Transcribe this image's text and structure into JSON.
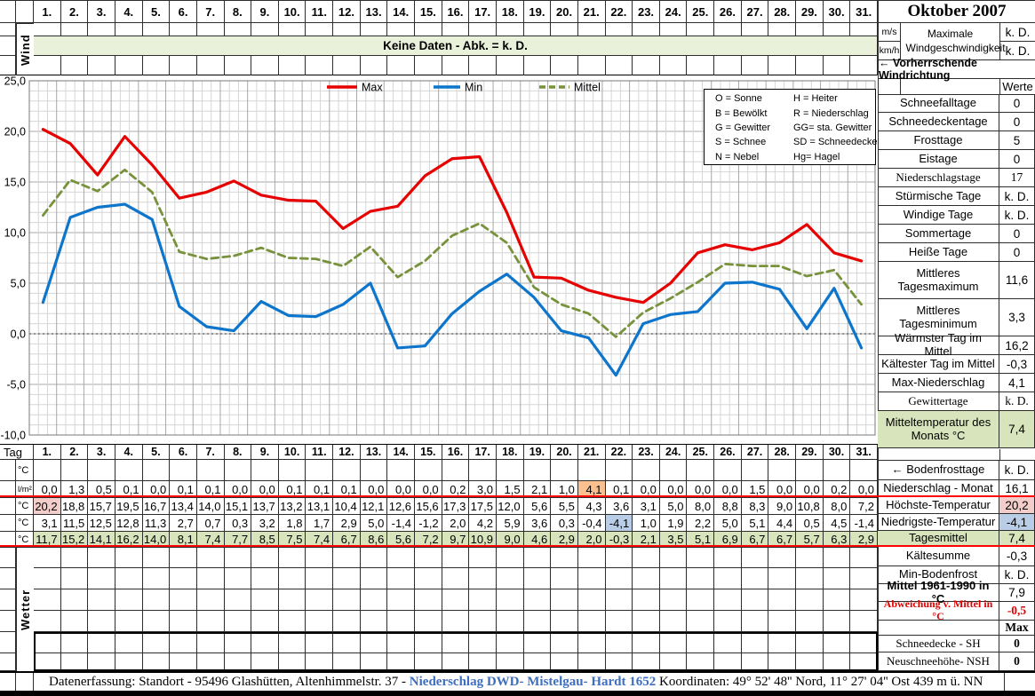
{
  "month_title": "Oktober 2007",
  "days": [
    "1.",
    "2.",
    "3.",
    "4.",
    "5.",
    "6.",
    "7.",
    "8.",
    "9.",
    "10.",
    "11.",
    "12.",
    "13.",
    "14.",
    "15.",
    "16.",
    "17.",
    "18.",
    "19.",
    "20.",
    "21.",
    "22.",
    "23.",
    "24.",
    "25.",
    "26.",
    "27.",
    "28.",
    "29.",
    "30.",
    "31."
  ],
  "wind_section": {
    "row_label": "Wind",
    "no_data_banner": "Keine Daten - Abk. = k. D."
  },
  "chart_data": {
    "type": "line",
    "title": "",
    "categories": [
      1,
      2,
      3,
      4,
      5,
      6,
      7,
      8,
      9,
      10,
      11,
      12,
      13,
      14,
      15,
      16,
      17,
      18,
      19,
      20,
      21,
      22,
      23,
      24,
      25,
      26,
      27,
      28,
      29,
      30,
      31
    ],
    "ylim": [
      -10,
      25
    ],
    "ytick_labels": [
      "25,0",
      "20,0",
      "15,0",
      "10,0",
      "5,0",
      "0,0",
      "-5,0",
      "-10,0"
    ],
    "grid": true,
    "legend_position": "top-center",
    "series": [
      {
        "name": "Max",
        "color": "#e60000",
        "dash": "solid",
        "values": [
          20.2,
          18.8,
          15.7,
          19.5,
          16.7,
          13.4,
          14.0,
          15.1,
          13.7,
          13.2,
          13.1,
          10.4,
          12.1,
          12.6,
          15.6,
          17.3,
          17.5,
          12.0,
          5.6,
          5.5,
          4.3,
          3.6,
          3.1,
          5.0,
          8.0,
          8.8,
          8.3,
          9.0,
          10.8,
          8.0,
          7.2
        ]
      },
      {
        "name": "Min",
        "color": "#0d76cc",
        "dash": "solid",
        "values": [
          3.1,
          11.5,
          12.5,
          12.8,
          11.3,
          2.7,
          0.7,
          0.3,
          3.2,
          1.8,
          1.7,
          2.9,
          5.0,
          -1.4,
          -1.2,
          2.0,
          4.2,
          5.9,
          3.6,
          0.3,
          -0.4,
          -4.1,
          1.0,
          1.9,
          2.2,
          5.0,
          5.1,
          4.4,
          0.5,
          4.5,
          -1.4
        ]
      },
      {
        "name": "Mittel",
        "color": "#78923c",
        "dash": "dashed",
        "values": [
          11.7,
          15.2,
          14.1,
          16.2,
          14.0,
          8.1,
          7.4,
          7.7,
          8.5,
          7.5,
          7.4,
          6.7,
          8.6,
          5.6,
          7.2,
          9.7,
          10.9,
          9.0,
          4.6,
          2.9,
          2.0,
          -0.3,
          2.1,
          3.5,
          5.1,
          6.9,
          6.7,
          6.7,
          5.7,
          6.3,
          2.9
        ]
      }
    ]
  },
  "abbreviations": {
    "rows": [
      [
        "O = Sonne",
        "H = Heiter"
      ],
      [
        "B = Bewölkt",
        "R = Niederschlag"
      ],
      [
        "G = Gewitter",
        "GG= sta. Gewitter"
      ],
      [
        "S = Schnee",
        "SD = Schneedecke"
      ],
      [
        "N = Nebel",
        "Hg= Hagel"
      ]
    ]
  },
  "table": {
    "tag_label": "Tag",
    "rows": [
      {
        "unit": "°C",
        "name": "bodenfrost",
        "values": null
      },
      {
        "unit": "l/m²",
        "name": "niederschlag",
        "values": [
          "0,0",
          "1,3",
          "0,5",
          "0,1",
          "0,0",
          "0,1",
          "0,1",
          "0,0",
          "0,0",
          "0,1",
          "0,1",
          "0,1",
          "0,0",
          "0,0",
          "0,0",
          "0,2",
          "3,0",
          "1,5",
          "2,1",
          "1,0",
          "4,1",
          "0,1",
          "0,0",
          "0,0",
          "0,0",
          "0,0",
          "1,5",
          "0,0",
          "0,0",
          "0,2",
          "0,0"
        ],
        "highlight": {
          "index": 20,
          "bg": "orange"
        }
      },
      {
        "unit": "°C",
        "name": "tmax",
        "from_series": "Max",
        "highlight": {
          "index": 0,
          "bg": "pink"
        }
      },
      {
        "unit": "°C",
        "name": "tmin",
        "from_series": "Min",
        "highlight": {
          "index": 21,
          "bg": "blue"
        }
      },
      {
        "unit": "°C",
        "name": "tmittel",
        "from_series": "Mittel",
        "row_bg": "green"
      }
    ]
  },
  "wetter_section": {
    "row_label": "Wetter"
  },
  "sidebar": {
    "wind": {
      "units": [
        "m/s",
        "km/h"
      ],
      "label": "Maximale Windgeschwindigkeit",
      "values": [
        "k. D.",
        "k. D."
      ]
    },
    "direction_label": "← Vorherrschende Windrichtung",
    "werte_header": "Werte",
    "stats": [
      {
        "label": "Schneefalltage",
        "value": "0"
      },
      {
        "label": "Schneedeckentage",
        "value": "0"
      },
      {
        "label": "Frosttage",
        "value": "5"
      },
      {
        "label": "Eistage",
        "value": "0"
      },
      {
        "label": "Niederschlagstage",
        "value": "17",
        "style": "serif"
      },
      {
        "label": "Stürmische Tage",
        "value": "k. D."
      },
      {
        "label": "Windige Tage",
        "value": "k. D."
      },
      {
        "label": "Sommertage",
        "value": "0"
      },
      {
        "label": "Heiße Tage",
        "value": "0"
      },
      {
        "label": "Mittleres Tagesmaximum",
        "value": "11,6",
        "tall": true
      },
      {
        "label": "Mittleres Tagesminimum",
        "value": "3,3",
        "tall": true
      },
      {
        "label": "Wärmster Tag im Mittel",
        "value": "16,2"
      },
      {
        "label": "Kältester Tag im Mittel",
        "value": "-0,3"
      },
      {
        "label": "Max-Niederschlag",
        "value": "4,1"
      },
      {
        "label": "Gewittertage",
        "value": "k. D.",
        "style": "serif"
      },
      {
        "label": "Mitteltemperatur des Monats °C",
        "value": "7,4",
        "tall": true,
        "green": true
      }
    ],
    "lower": [
      {
        "label": "← Bodenfrosttage",
        "value": "k. D."
      },
      {
        "label": "Niederschlag - Monat",
        "value": "16,1"
      },
      {
        "label": "Höchste-Temperatur",
        "value": "20,2",
        "value_bg": "pink"
      },
      {
        "label": "Niedrigste-Temperatur",
        "value": "-4,1",
        "value_bg": "blue"
      },
      {
        "label": "Tagesmittel",
        "value": "7,4",
        "green": true
      },
      {
        "label": "Kältesumme",
        "value": "-0,3"
      },
      {
        "label": "Min-Bodenfrost",
        "value": "k. D."
      },
      {
        "label": "Mittel 1961-1990 in °C",
        "value": "7,9",
        "bold": true
      },
      {
        "label": "Abweichung v. Mittel in °C",
        "value": "-0,5",
        "red": true
      },
      {
        "label": "",
        "value": "Max",
        "value_style": "serif-bold"
      },
      {
        "label": "Schneedecke -  SH",
        "value": "0",
        "style": "serif",
        "value_style": "serif-bold"
      },
      {
        "label": "Neuschneehöhe- NSH",
        "value": "0",
        "style": "serif",
        "value_style": "serif-bold"
      }
    ]
  },
  "footer": {
    "left_text": "Datenerfassung:  Standort -  95496  Glashütten, Altenhimmelstr. 37 - ",
    "link_text": "Niederschlag DWD- Mistelgau- Hardt 1652",
    "right_text": "Koordinaten:  49° 52' 48'' Nord,   11° 27' 04'' Ost   439 m ü. NN"
  },
  "colors": {
    "max_line": "#e60000",
    "min_line": "#0d76cc",
    "mittel_line": "#78923c",
    "band_green": "#eaf1da",
    "cell_green": "#d8e4bc",
    "cell_pink": "#f2cdca",
    "cell_blue": "#bacde6",
    "cell_orange": "#fac090",
    "red_rule": "#ff0000",
    "link_blue": "#3d6ebf",
    "grid_minor": "#d6d6d6",
    "grid_major": "#a8a8a8"
  }
}
